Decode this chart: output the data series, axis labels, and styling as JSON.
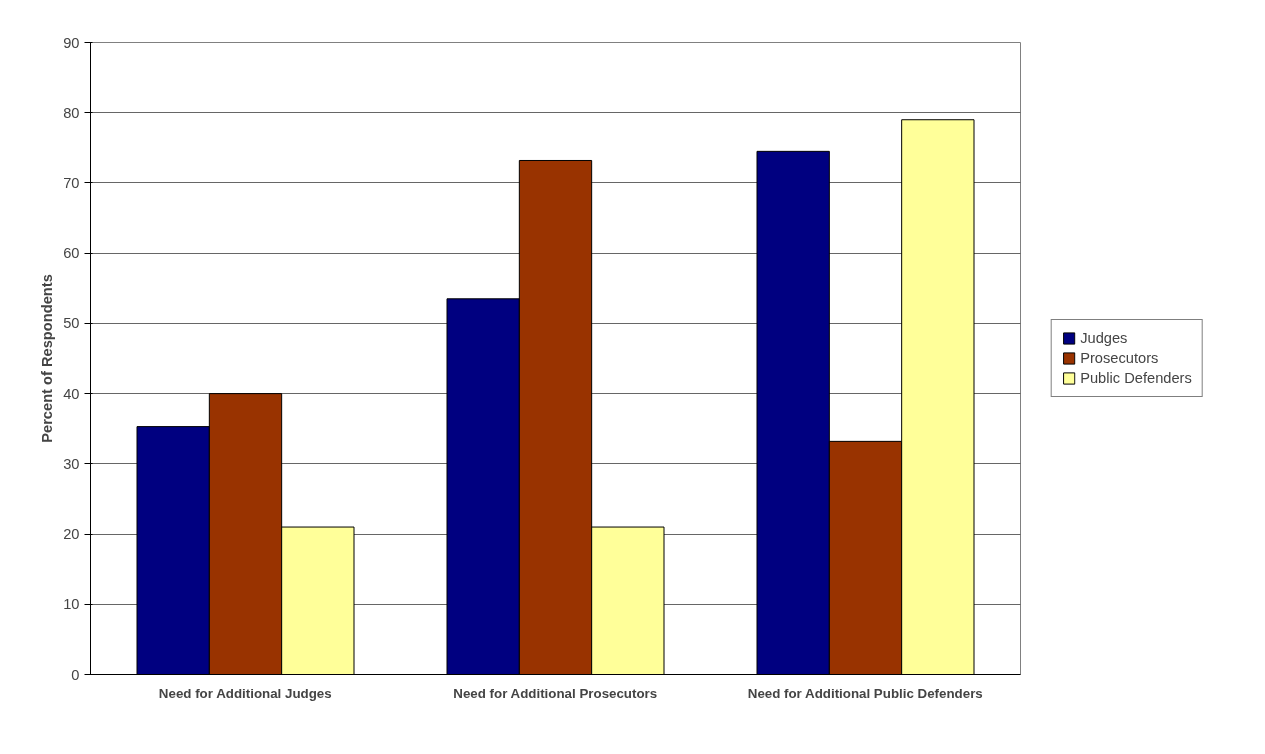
{
  "chart_data": {
    "type": "bar",
    "ylabel": "Percent of Respondents",
    "categories": [
      "Need for Additional Judges",
      "Need for Additional Prosecutors",
      "Need for Additional Public Defenders"
    ],
    "series": [
      {
        "name": "Judges",
        "color": "#000080",
        "values": [
          35.3,
          53.5,
          74.5
        ]
      },
      {
        "name": "Prosecutors",
        "color": "#993300",
        "values": [
          40,
          73.2,
          33.2
        ]
      },
      {
        "name": "Public Defenders",
        "color": "#ffff99",
        "values": [
          21,
          21,
          79
        ]
      }
    ],
    "ylim": [
      0,
      90
    ],
    "yticks": [
      0,
      10,
      20,
      30,
      40,
      50,
      60,
      70,
      80,
      90
    ],
    "grid": "y",
    "legend": "right"
  }
}
